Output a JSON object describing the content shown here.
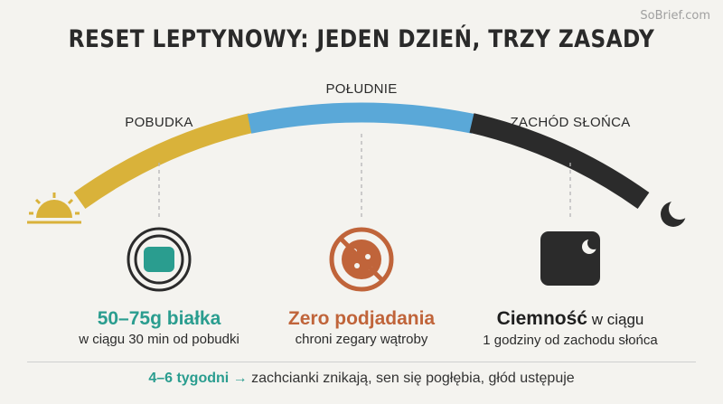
{
  "watermark": "SoBrief.com",
  "title": "RESET LEPTYNOWY: JEDEN DZIEŃ, TRZY ZASADY",
  "phases": {
    "morning": "POBUDKA",
    "noon": "POŁUDNIE",
    "sunset": "ZACHÓD SŁOŃCA"
  },
  "icons": {
    "start": "sunrise-icon",
    "end": "moon-icon",
    "protein": "protein-bar-icon",
    "no_snacking": "no-cookie-icon",
    "darkness": "dark-window-moon-icon"
  },
  "colors": {
    "morning": "#d9b23a",
    "noon": "#5aa8d8",
    "night": "#2b2b2b",
    "teal": "#2a9d8f",
    "rust": "#c0643a"
  },
  "rules": [
    {
      "head": "50–75g białka",
      "sub": "w ciągu 30 min od pobudki"
    },
    {
      "head": "Zero podjadania",
      "sub": "chroni zegary wątroby"
    },
    {
      "head": "Ciemność",
      "head_suffix": " w ciągu",
      "sub": "1 godziny od zachodu słońca"
    }
  ],
  "footer": {
    "highlight": "4–6 tygodni →",
    "text": " zachcianki znikają, sen się pogłębia, głód ustępuje"
  }
}
